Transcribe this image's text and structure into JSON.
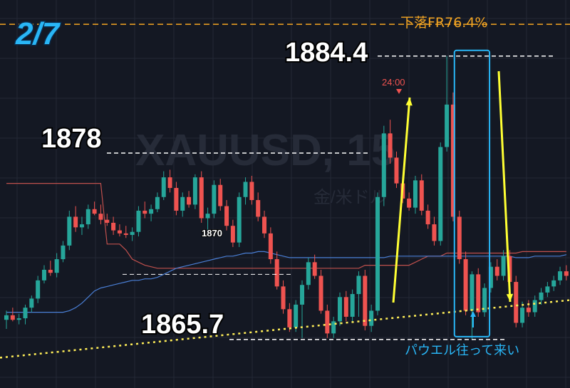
{
  "chart_data": {
    "type": "candlestick",
    "watermark": {
      "symbol": "XAUUSD, 15",
      "subtitle": "金/米ドル"
    },
    "date_label": "2/7",
    "colors": {
      "background": "#141823",
      "grid": "#232836",
      "up": "#26a69a",
      "down": "#ef5350",
      "date_label": "#29b6f6",
      "fib_line": "#f5a623",
      "support": "#ffee58",
      "arrow": "#ffff33",
      "highlight": "#29b6f6",
      "ma_blue": "#4a7fd6",
      "ma_red": "#c0504d",
      "marker": "#ef5350"
    },
    "ylim": [
      1862.5,
      1888.1
    ],
    "fib_label": "下落FR76.4%",
    "levels": [
      {
        "label": "1884.4",
        "value": 1884.4
      },
      {
        "label": "1878",
        "value": 1878.0
      },
      {
        "label": "1870",
        "value": 1870.0
      },
      {
        "label": "1865.7",
        "value": 1865.7
      }
    ],
    "fib_level": 1886.5,
    "time_marker": "24:00",
    "event_label": "パウエル往って来い",
    "support_line": {
      "start": 1864.5,
      "end": 1868.3
    },
    "candles": [
      [
        1867.0,
        1867.6,
        1866.4,
        1867.3
      ],
      [
        1867.3,
        1867.8,
        1866.9,
        1867.0
      ],
      [
        1867.0,
        1867.4,
        1866.7,
        1867.1
      ],
      [
        1867.1,
        1868.0,
        1866.7,
        1867.8
      ],
      [
        1867.8,
        1868.6,
        1867.5,
        1868.4
      ],
      [
        1868.4,
        1869.9,
        1868.1,
        1869.6
      ],
      [
        1869.6,
        1870.6,
        1869.4,
        1870.3
      ],
      [
        1870.3,
        1870.9,
        1869.9,
        1870.1
      ],
      [
        1870.1,
        1871.4,
        1869.8,
        1871.0
      ],
      [
        1871.0,
        1872.2,
        1870.8,
        1871.9
      ],
      [
        1871.9,
        1874.2,
        1871.6,
        1873.8
      ],
      [
        1873.8,
        1874.5,
        1872.8,
        1873.1
      ],
      [
        1873.1,
        1873.8,
        1872.6,
        1873.3
      ],
      [
        1873.3,
        1874.6,
        1873.0,
        1874.3
      ],
      [
        1874.3,
        1874.8,
        1873.9,
        1874.0
      ],
      [
        1874.0,
        1874.6,
        1873.3,
        1873.6
      ],
      [
        1873.6,
        1874.0,
        1873.2,
        1873.4
      ],
      [
        1873.4,
        1873.8,
        1872.6,
        1872.9
      ],
      [
        1872.9,
        1873.3,
        1872.5,
        1872.7
      ],
      [
        1872.7,
        1873.2,
        1872.4,
        1872.6
      ],
      [
        1872.6,
        1873.1,
        1872.2,
        1872.8
      ],
      [
        1872.8,
        1874.5,
        1872.5,
        1874.2
      ],
      [
        1874.2,
        1874.8,
        1873.7,
        1874.0
      ],
      [
        1874.0,
        1874.6,
        1873.5,
        1874.3
      ],
      [
        1874.3,
        1875.4,
        1874.1,
        1875.1
      ],
      [
        1875.1,
        1876.8,
        1874.9,
        1876.4
      ],
      [
        1876.4,
        1876.9,
        1875.4,
        1875.7
      ],
      [
        1875.7,
        1876.1,
        1873.9,
        1874.2
      ],
      [
        1874.2,
        1875.4,
        1873.8,
        1875.1
      ],
      [
        1875.1,
        1875.5,
        1874.4,
        1874.6
      ],
      [
        1874.6,
        1876.6,
        1874.3,
        1876.4
      ],
      [
        1876.4,
        1876.8,
        1873.4,
        1873.7
      ],
      [
        1873.7,
        1874.4,
        1872.8,
        1874.0
      ],
      [
        1874.0,
        1876.2,
        1873.7,
        1875.9
      ],
      [
        1875.9,
        1876.3,
        1874.2,
        1874.5
      ],
      [
        1874.5,
        1874.9,
        1872.9,
        1873.2
      ],
      [
        1873.2,
        1873.6,
        1871.8,
        1872.1
      ],
      [
        1872.1,
        1875.4,
        1871.8,
        1875.1
      ],
      [
        1875.1,
        1876.4,
        1874.6,
        1876.1
      ],
      [
        1876.1,
        1876.5,
        1874.6,
        1874.9
      ],
      [
        1874.9,
        1875.4,
        1873.5,
        1873.8
      ],
      [
        1873.8,
        1874.2,
        1872.4,
        1872.7
      ],
      [
        1872.7,
        1873.1,
        1870.7,
        1871.0
      ],
      [
        1871.0,
        1871.5,
        1869.0,
        1869.2
      ],
      [
        1869.2,
        1869.6,
        1867.4,
        1867.7
      ],
      [
        1867.7,
        1868.1,
        1866.2,
        1866.5
      ],
      [
        1866.5,
        1868.3,
        1866.2,
        1868.0
      ],
      [
        1868.0,
        1869.6,
        1865.8,
        1869.3
      ],
      [
        1869.3,
        1871.1,
        1869.0,
        1870.8
      ],
      [
        1870.8,
        1871.3,
        1869.7,
        1869.9
      ],
      [
        1869.9,
        1870.3,
        1867.4,
        1867.6
      ],
      [
        1867.6,
        1868.0,
        1865.8,
        1866.1
      ],
      [
        1866.1,
        1867.2,
        1865.8,
        1866.9
      ],
      [
        1866.9,
        1868.8,
        1866.6,
        1868.5
      ],
      [
        1868.5,
        1868.9,
        1866.9,
        1867.2
      ],
      [
        1867.2,
        1869.0,
        1866.8,
        1868.7
      ],
      [
        1868.7,
        1870.2,
        1867.2,
        1869.9
      ],
      [
        1869.9,
        1870.3,
        1866.3,
        1866.6
      ],
      [
        1866.6,
        1868.0,
        1866.2,
        1867.6
      ],
      [
        1867.6,
        1875.4,
        1867.3,
        1875.1
      ],
      [
        1875.1,
        1879.8,
        1874.5,
        1879.3
      ],
      [
        1879.3,
        1880.2,
        1877.3,
        1877.7
      ],
      [
        1877.7,
        1878.1,
        1875.7,
        1876.0
      ],
      [
        1876.0,
        1876.4,
        1874.7,
        1875.0
      ],
      [
        1875.0,
        1875.4,
        1874.2,
        1874.4
      ],
      [
        1874.4,
        1876.5,
        1874.0,
        1876.2
      ],
      [
        1876.2,
        1876.6,
        1873.9,
        1874.2
      ],
      [
        1874.2,
        1874.6,
        1873.0,
        1873.3
      ],
      [
        1873.3,
        1873.8,
        1871.9,
        1872.2
      ],
      [
        1872.2,
        1878.7,
        1871.9,
        1878.4
      ],
      [
        1878.4,
        1884.4,
        1878.1,
        1881.2
      ],
      [
        1881.2,
        1882.0,
        1873.5,
        1873.8
      ],
      [
        1873.8,
        1874.2,
        1870.7,
        1871.0
      ],
      [
        1871.0,
        1871.5,
        1867.3,
        1867.6
      ],
      [
        1867.6,
        1870.2,
        1865.7,
        1870.0
      ],
      [
        1870.0,
        1870.4,
        1867.2,
        1867.5
      ],
      [
        1867.5,
        1869.4,
        1867.2,
        1869.1
      ],
      [
        1869.1,
        1870.8,
        1868.8,
        1870.5
      ],
      [
        1870.5,
        1871.0,
        1869.6,
        1869.9
      ],
      [
        1869.9,
        1871.6,
        1869.6,
        1871.2
      ],
      [
        1871.2,
        1871.6,
        1869.2,
        1869.5
      ],
      [
        1869.5,
        1869.9,
        1866.5,
        1866.8
      ],
      [
        1866.8,
        1868.2,
        1866.5,
        1867.8
      ],
      [
        1867.8,
        1868.3,
        1867.2,
        1867.5
      ],
      [
        1867.5,
        1868.6,
        1867.2,
        1868.3
      ],
      [
        1868.3,
        1869.1,
        1868.0,
        1868.8
      ],
      [
        1868.8,
        1869.5,
        1868.5,
        1869.2
      ],
      [
        1869.2,
        1869.9,
        1868.9,
        1869.6
      ],
      [
        1869.6,
        1870.5,
        1869.3,
        1870.2
      ],
      [
        1870.2,
        1870.6,
        1869.6,
        1869.9
      ]
    ],
    "ma_blue": [
      1867.5,
      1867.5,
      1867.5,
      1867.5,
      1867.5,
      1867.5,
      1867.5,
      1867.5,
      1867.5,
      1867.5,
      1867.6,
      1867.8,
      1868.1,
      1868.5,
      1868.9,
      1869.1,
      1869.2,
      1869.3,
      1869.4,
      1869.5,
      1869.6,
      1869.6,
      1869.7,
      1869.7,
      1869.8,
      1870.0,
      1870.2,
      1870.4,
      1870.5,
      1870.6,
      1870.7,
      1870.8,
      1870.9,
      1871.0,
      1871.1,
      1871.2,
      1871.2,
      1871.3,
      1871.4,
      1871.4,
      1871.5,
      1871.5,
      1871.4,
      1871.3,
      1871.2,
      1871.1,
      1871.1,
      1871.1,
      1871.1,
      1871.1,
      1871.1,
      1871.1,
      1871.1,
      1871.1,
      1871.1,
      1871.1,
      1871.1,
      1871.1,
      1871.1,
      1871.1,
      1871.1,
      1871.2,
      1871.2,
      1871.2,
      1871.2,
      1871.2,
      1871.2,
      1871.2,
      1871.2,
      1871.2,
      1871.2,
      1871.2,
      1871.2,
      1871.2,
      1871.2,
      1871.2,
      1871.2,
      1871.2,
      1871.2,
      1871.2,
      1871.2,
      1871.1,
      1871.1,
      1871.1,
      1871.2,
      1871.2,
      1871.2,
      1871.2,
      1871.2,
      1871.3
    ],
    "ma_red": [
      1876.0,
      1876.0,
      1876.0,
      1876.0,
      1876.0,
      1876.0,
      1876.0,
      1876.0,
      1876.0,
      1876.0,
      1876.0,
      1876.0,
      1876.0,
      1876.0,
      1876.0,
      1876.0,
      1872.0,
      1872.0,
      1872.0,
      1871.6,
      1871.0,
      1870.8,
      1870.6,
      1870.5,
      1870.4,
      1870.4,
      1870.4,
      1870.4,
      1870.4,
      1870.4,
      1870.4,
      1870.4,
      1870.4,
      1870.4,
      1870.4,
      1870.4,
      1870.4,
      1870.4,
      1870.4,
      1870.4,
      1870.4,
      1870.4,
      1870.4,
      1870.4,
      1870.4,
      1870.4,
      1870.4,
      1870.4,
      1870.4,
      1870.4,
      1870.4,
      1870.4,
      1870.4,
      1870.4,
      1870.4,
      1870.4,
      1870.4,
      1870.6,
      1870.6,
      1870.6,
      1870.6,
      1870.6,
      1870.6,
      1870.6,
      1870.6,
      1870.8,
      1871.0,
      1871.2,
      1871.2,
      1871.2,
      1871.4,
      1871.4,
      1871.4,
      1871.4,
      1871.4,
      1871.4,
      1871.4,
      1871.4,
      1871.4,
      1871.4,
      1871.4,
      1871.4,
      1871.5,
      1871.5,
      1871.5,
      1871.5,
      1871.5,
      1871.5,
      1871.5,
      1871.5
    ],
    "grid_on": true
  }
}
